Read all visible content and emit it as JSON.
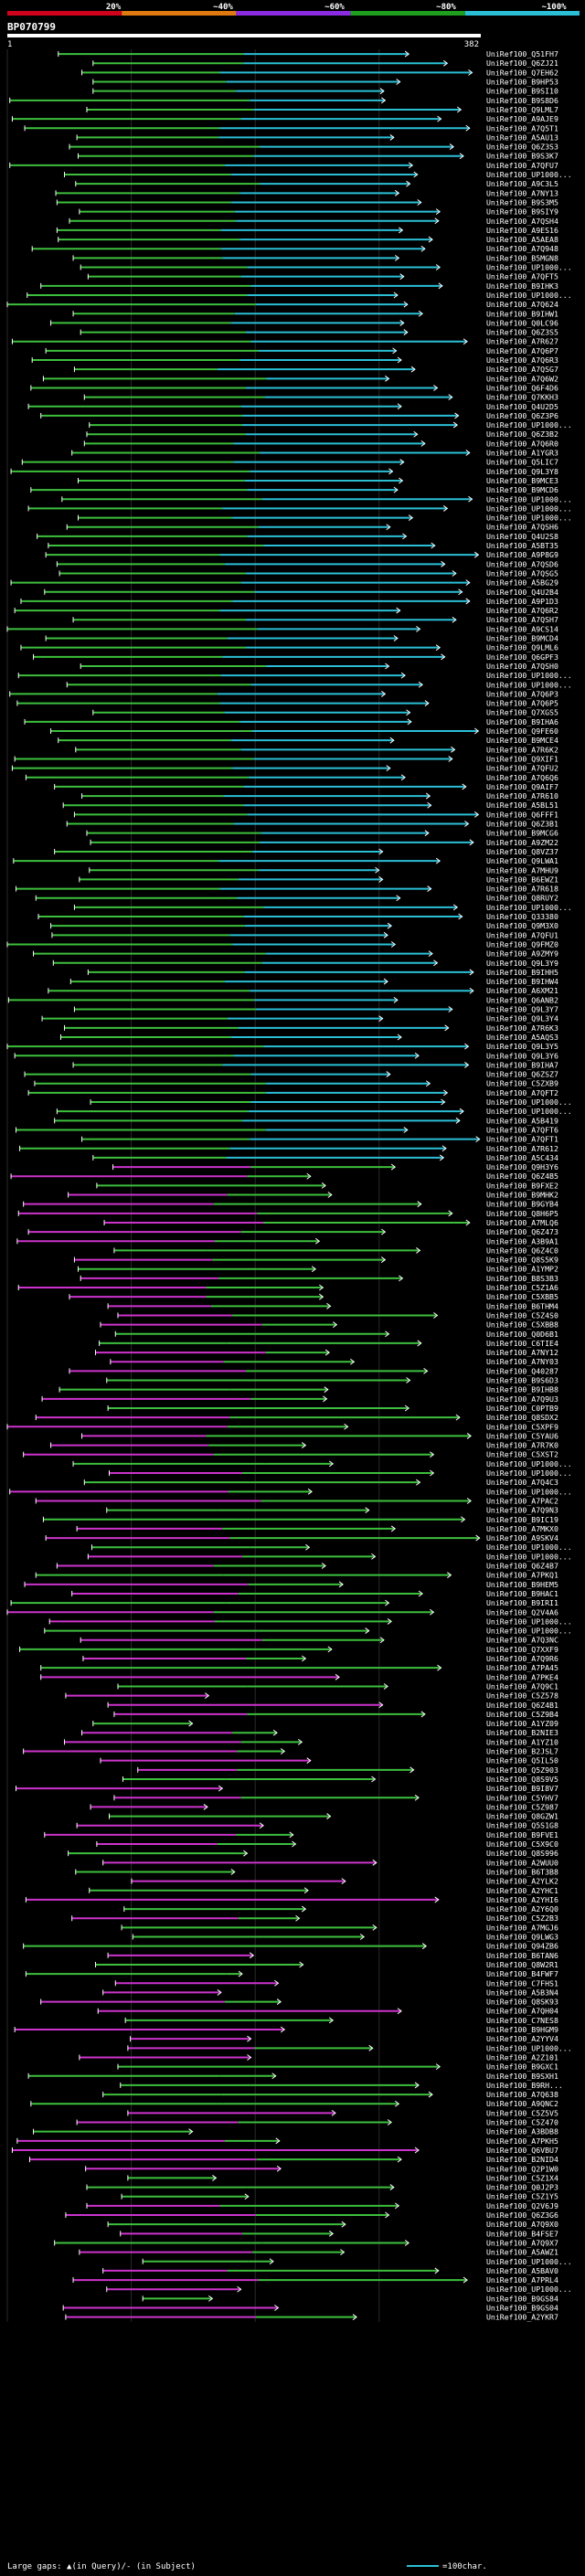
{
  "chart_data": {
    "type": "alignment-overview",
    "query": {
      "name": "BP070799",
      "start": 1,
      "end": 382
    },
    "identity_scale": {
      "ticks": [
        "20%",
        "~40%",
        "~60%",
        "~80%",
        "~100%"
      ],
      "colors": [
        "#d0021b",
        "#e07a10",
        "#8a2be2",
        "#1e9e1e",
        "#2bbfd6"
      ]
    },
    "legend": {
      "large_gaps_text": "Large gaps: ▲(in Query)/- (in Subject)",
      "scale_text": "=100char."
    },
    "band_colors": [
      "#2bbfd6",
      "#3dbf3d",
      "#cc33cc"
    ],
    "hits": [
      "UniRef100_Q51FH7",
      "UniRef100_Q6ZJ21",
      "UniRef100_Q7EH62",
      "UniRef100_B9HP53",
      "UniRef100_B9SI10",
      "UniRef100_B9S8D6",
      "UniRef100_Q9LML7",
      "UniRef100_A9AJE9",
      "UniRef100_A7Q5T1",
      "UniRef100_A5AU13",
      "UniRef100_Q6Z3S3",
      "UniRef100_B9S3K7",
      "UniRef100_A7QFU7",
      "UniRef100_UP1000...",
      "UniRef100_A9C3L5",
      "UniRef100_A7NY13",
      "UniRef100_B9S3M5",
      "UniRef100_B9SIY9",
      "UniRef100_A7QSH4",
      "UniRef100_A9ES16",
      "UniRef100_A5AEA8",
      "UniRef100_A7Q948",
      "UniRef100_B5MGN8",
      "UniRef100_UP1000...",
      "UniRef100_A7QFT5",
      "UniRef100_B9IHK3",
      "UniRef100_UP1000...",
      "UniRef100_A7Q624",
      "UniRef100_B9IHW1",
      "UniRef100_Q0LC96",
      "UniRef100_Q6Z3S5",
      "UniRef100_A7R627",
      "UniRef100_A7Q6P7",
      "UniRef100_A7Q6R3",
      "UniRef100_A7QSG7",
      "UniRef100_A7Q6W2",
      "UniRef100_Q6F4D6",
      "UniRef100_Q7KKH3",
      "UniRef100_Q4U2D5",
      "UniRef100_Q6Z3P6",
      "UniRef100_UP1000...",
      "UniRef100_Q6Z3B2",
      "UniRef100_A7Q6R0",
      "UniRef100_A1YGR3",
      "UniRef100_Q5LIC7",
      "UniRef100_Q9L3Y8",
      "UniRef100_B9MCE3",
      "UniRef100_B9MCD6",
      "UniRef100_UP1000...",
      "UniRef100_UP1000...",
      "UniRef100_UP1000...",
      "UniRef100_A7QSH6",
      "UniRef100_Q4U2S8",
      "UniRef100_A5BT35",
      "UniRef100_A9P8G9",
      "UniRef100_A7QSD6",
      "UniRef100_A7QSG5",
      "UniRef100_A5BG29",
      "UniRef100_Q4U2B4",
      "UniRef100_A9P1D3",
      "UniRef100_A7Q6R2",
      "UniRef100_A7QSH7",
      "UniRef100_A9CS14",
      "UniRef100_B9MCD4",
      "UniRef100_Q9LML6",
      "UniRef100_Q6GPF3",
      "UniRef100_A7QSH0",
      "UniRef100_UP1000...",
      "UniRef100_UP1000...",
      "UniRef100_A7Q6P3",
      "UniRef100_A7Q6P5",
      "UniRef100_Q7XGS5",
      "UniRef100_B9IHA6",
      "UniRef100_Q9FE60",
      "UniRef100_B9MCE4",
      "UniRef100_A7R6K2",
      "UniRef100_Q9XIF1",
      "UniRef100_A7QFU2",
      "UniRef100_A7Q6Q6",
      "UniRef100_Q9AIF7",
      "UniRef100_A7R610",
      "UniRef100_A5BL51",
      "UniRef100_Q6FFF1",
      "UniRef100_Q6Z3B1",
      "UniRef100_B9MCG6",
      "UniRef100_A9ZM22",
      "UniRef100_Q8VZ37",
      "UniRef100_Q9LWA1",
      "UniRef100_A7MHU9",
      "UniRef100_B6EWZ1",
      "UniRef100_A7R618",
      "UniRef100_Q8RUY2",
      "UniRef100_UP1000...",
      "UniRef100_Q33380",
      "UniRef100_Q9M3X0",
      "UniRef100_A7QFU1",
      "UniRef100_Q9FMZ0",
      "UniRef100_A9ZMY9",
      "UniRef100_Q9L3Y9",
      "UniRef100_B9IHH5",
      "UniRef100_B9IHW4",
      "UniRef100_A6XM21",
      "UniRef100_Q6ANB2",
      "UniRef100_Q9L3Y7",
      "UniRef100_Q9L3Y4",
      "UniRef100_A7R6K3",
      "UniRef100_A5AQS3",
      "UniRef100_Q9L3Y5",
      "UniRef100_Q9L3Y6",
      "UniRef100_B9IHA7",
      "UniRef100_Q6ZSZ7",
      "UniRef100_C5ZXB9",
      "UniRef100_A7QFT2",
      "UniRef100_UP1000...",
      "UniRef100_UP1000...",
      "UniRef100_A5B419",
      "UniRef100_A7QFT6",
      "UniRef100_A7QFT1",
      "UniRef100_A7R612",
      "UniRef100_A5C434",
      "UniRef100_Q9H3Y6",
      "UniRef100_Q6Z4B5",
      "UniRef100_B9FXE2",
      "UniRef100_B9MHK2",
      "UniRef100_B9GYB4",
      "UniRef100_Q8H6P5",
      "UniRef100_A7MLQ6",
      "UniRef100_Q6Z473",
      "UniRef100_A3B9A1",
      "UniRef100_Q6Z4C0",
      "UniRef100_Q8S5K9",
      "UniRef100_A1YMP2",
      "UniRef100_B8S3B3",
      "UniRef100_C5Z1A6",
      "UniRef100_C5XBB5",
      "UniRef100_B6THM4",
      "UniRef100_C5Z4S0",
      "UniRef100_C5XBB8",
      "UniRef100_Q0D6B1",
      "UniRef100_C6TIE4",
      "UniRef100_A7NY12",
      "UniRef100_A7NY03",
      "UniRef100_Q40287",
      "UniRef100_B9S6D3",
      "UniRef100_B9IHB8",
      "UniRef100_A7Q9U3",
      "UniRef100_C0PTB9",
      "UniRef100_Q8SDX2",
      "UniRef100_C5XPF9",
      "UniRef100_C5YAU6",
      "UniRef100_A7R7K0",
      "UniRef100_C5XST2",
      "UniRef100_UP1000...",
      "UniRef100_UP1000...",
      "UniRef100_A7Q4C3",
      "UniRef100_UP1000...",
      "UniRef100_A7PAC2",
      "UniRef100_A7Q9N3",
      "UniRef100_B9IC19",
      "UniRef100_A7MKX0",
      "UniRef100_A9SKV4",
      "UniRef100_UP1000...",
      "UniRef100_UP1000...",
      "UniRef100_Q6Z4B7",
      "UniRef100_A7PKQ1",
      "UniRef100_B9HEM5",
      "UniRef100_B9HAC1",
      "UniRef100_B9IRI1",
      "UniRef100_Q2V4A6",
      "UniRef100_UP1000...",
      "UniRef100_UP1000...",
      "UniRef100_A7Q3NC",
      "UniRef100_Q7XXF9",
      "UniRef100_A7Q9R6",
      "UniRef100_A7PA45",
      "UniRef100_A7PKE4",
      "UniRef100_A7Q9C1",
      "UniRef100_C5Z578",
      "UniRef100_Q6Z4B1",
      "UniRef100_C5Z9B4",
      "UniRef100_A1YZ09",
      "UniRef100_B2NIE3",
      "UniRef100_A1YZ10",
      "UniRef100_B2JSL7",
      "UniRef100_Q5IL50",
      "UniRef100_Q5Z903",
      "UniRef100_Q8S9V5",
      "UniRef100_B9I8V7",
      "UniRef100_C5YHV7",
      "UniRef100_C5Z987",
      "UniRef100_Q8GZW1",
      "UniRef100_Q5S1G8",
      "UniRef100_B9FVE1",
      "UniRef100_C5X9C0",
      "UniRef100_Q8S996",
      "UniRef100_A2WUU0",
      "UniRef100_B6T3B8",
      "UniRef100_A2YLK2",
      "UniRef100_A2YHC1",
      "UniRef100_A2YHI6",
      "UniRef100_A2Y6Q0",
      "UniRef100_C5Z2B3",
      "UniRef100_A7MGJ6",
      "UniRef100_Q9LWG3",
      "UniRef100_Q94ZB6",
      "UniRef100_B6TAN6",
      "UniRef100_Q8W2R1",
      "UniRef100_B4FWF7",
      "UniRef100_C7FHS1",
      "UniRef100_A5B3N4",
      "UniRef100_Q8SK93",
      "UniRef100_A7QH04",
      "UniRef100_C7NES8",
      "UniRef100_B9HGM9",
      "UniRef100_A2YYV4",
      "UniRef100_UP1000...",
      "UniRef100_A2Z101",
      "UniRef100_B9GXC1",
      "UniRef100_B9SXH1",
      "UniRef100_B9RH...",
      "UniRef100_A7Q638",
      "UniRef100_A9QNC2",
      "UniRef100_C5Z5V5",
      "UniRef100_C5Z470",
      "UniRef100_A3BDB8",
      "UniRef100_A7PKH5",
      "UniRef100_Q6VBU7",
      "UniRef100_B2NID4",
      "UniRef100_Q2P1W0",
      "UniRef100_C5Z1X4",
      "UniRef100_Q0J2P3",
      "UniRef100_C5Z1Y5",
      "UniRef100_Q2V6J9",
      "UniRef100_Q6Z3G6",
      "UniRef100_A7Q9X0",
      "UniRef100_B4FSE7",
      "UniRef100_A7Q9X7",
      "UniRef100_A5AWZ1",
      "UniRef100_UP1000...",
      "UniRef100_A5BAV0",
      "UniRef100_A7PRL4",
      "UniRef100_UP1000...",
      "UniRef100_B9GS84",
      "UniRef100_B9GS04",
      "UniRef100_A2YKR7"
    ]
  }
}
